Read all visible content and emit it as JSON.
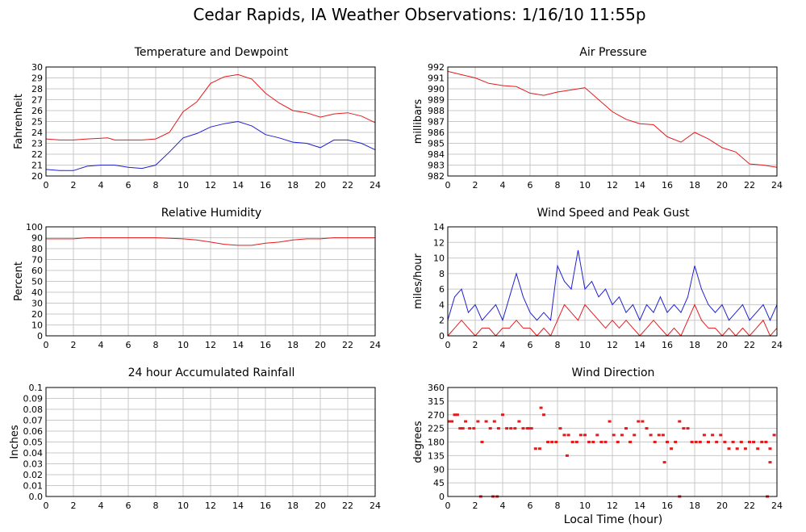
{
  "page_title": "Cedar Rapids, IA Weather Observations: 1/16/10 11:55p",
  "xlabel": "Local Time (hour)",
  "colors": {
    "red": "#e41a1c",
    "blue": "#2020d0",
    "grid": "#c8c8c8",
    "frame": "#000000"
  },
  "chart_data": [
    {
      "type": "line",
      "title": "Temperature and Dewpoint",
      "ylabel": "Fahrenheit",
      "xlim": [
        0,
        24
      ],
      "ylim": [
        20,
        30
      ],
      "xticks": [
        0,
        2,
        4,
        6,
        8,
        10,
        12,
        14,
        16,
        18,
        20,
        22,
        24
      ],
      "yticks": [
        "20",
        "21",
        "22",
        "23",
        "24",
        "25",
        "26",
        "27",
        "28",
        "29",
        "30"
      ],
      "series": [
        {
          "color": "#e41a1c",
          "x": [
            0,
            1,
            2,
            3,
            4.5,
            5,
            6,
            7,
            8,
            9,
            10,
            11,
            12,
            13,
            14,
            15,
            16,
            17,
            18,
            19,
            20,
            21,
            22,
            23,
            24
          ],
          "values": [
            23.4,
            23.3,
            23.3,
            23.4,
            23.5,
            23.3,
            23.3,
            23.3,
            23.4,
            24.0,
            25.9,
            26.8,
            28.5,
            29.1,
            29.3,
            28.9,
            27.6,
            26.7,
            26.0,
            25.8,
            25.4,
            25.7,
            25.8,
            25.5,
            24.9
          ]
        },
        {
          "color": "#2020d0",
          "x": [
            0,
            1,
            2,
            3,
            4,
            5,
            6,
            7,
            8,
            9,
            10,
            11,
            12,
            13,
            14,
            15,
            16,
            17,
            18,
            19,
            20,
            21,
            22,
            23,
            24
          ],
          "values": [
            20.6,
            20.5,
            20.5,
            20.9,
            21.0,
            21.0,
            20.8,
            20.7,
            21.0,
            22.2,
            23.5,
            23.9,
            24.5,
            24.8,
            25.0,
            24.6,
            23.8,
            23.5,
            23.1,
            23.0,
            22.6,
            23.3,
            23.3,
            23.0,
            22.4
          ]
        }
      ]
    },
    {
      "type": "line",
      "title": "Air Pressure",
      "ylabel": "millibars",
      "xlim": [
        0,
        24
      ],
      "ylim": [
        982,
        992
      ],
      "xticks": [
        0,
        2,
        4,
        6,
        8,
        10,
        12,
        14,
        16,
        18,
        20,
        22,
        24
      ],
      "yticks": [
        "982",
        "983",
        "984",
        "985",
        "986",
        "987",
        "988",
        "989",
        "990",
        "991",
        "992"
      ],
      "series": [
        {
          "color": "#e41a1c",
          "x": [
            0,
            1,
            2,
            3,
            4,
            5,
            6,
            7,
            8,
            9,
            10,
            11,
            12,
            13,
            14,
            15,
            16,
            17,
            18,
            19,
            20,
            21,
            22,
            23,
            24
          ],
          "values": [
            991.6,
            991.3,
            991.0,
            990.5,
            990.3,
            990.2,
            989.6,
            989.4,
            989.7,
            989.9,
            990.1,
            989.0,
            987.9,
            987.2,
            986.8,
            986.7,
            985.6,
            985.1,
            986.0,
            985.4,
            984.6,
            984.2,
            983.1,
            983.0,
            982.8
          ]
        }
      ]
    },
    {
      "type": "line",
      "title": "Relative Humidity",
      "ylabel": "Percent",
      "xlim": [
        0,
        24
      ],
      "ylim": [
        0,
        100
      ],
      "xticks": [
        0,
        2,
        4,
        6,
        8,
        10,
        12,
        14,
        16,
        18,
        20,
        22,
        24
      ],
      "yticks": [
        "0",
        "10",
        "20",
        "30",
        "40",
        "50",
        "60",
        "70",
        "80",
        "90",
        "100"
      ],
      "series": [
        {
          "color": "#e41a1c",
          "x": [
            0,
            2,
            3,
            4,
            6,
            8,
            10,
            11,
            12,
            13,
            14,
            15,
            16,
            17,
            18,
            19,
            20,
            21,
            22,
            24
          ],
          "values": [
            89,
            89,
            90,
            90,
            90,
            90,
            89,
            88,
            86,
            84,
            83,
            83,
            85,
            86,
            88,
            89,
            89,
            90,
            90,
            90
          ]
        }
      ]
    },
    {
      "type": "line",
      "title": "Wind Speed and Peak Gust",
      "ylabel": "miles/hour",
      "xlim": [
        0,
        24
      ],
      "ylim": [
        0,
        14
      ],
      "xticks": [
        0,
        2,
        4,
        6,
        8,
        10,
        12,
        14,
        16,
        18,
        20,
        22,
        24
      ],
      "yticks": [
        "0",
        "2",
        "4",
        "6",
        "8",
        "10",
        "12",
        "14"
      ],
      "series": [
        {
          "color": "#2020d0",
          "x": [
            0,
            0.5,
            1,
            1.5,
            2,
            2.5,
            3,
            3.5,
            4,
            4.5,
            5,
            5.5,
            6,
            6.5,
            7,
            7.5,
            8,
            8.5,
            9,
            9.5,
            10,
            10.5,
            11,
            11.5,
            12,
            12.5,
            13,
            13.5,
            14,
            14.5,
            15,
            15.5,
            16,
            16.5,
            17,
            17.5,
            18,
            18.5,
            19,
            19.5,
            20,
            20.5,
            21,
            21.5,
            22,
            22.5,
            23,
            23.5,
            24
          ],
          "values": [
            2,
            5,
            6,
            3,
            4,
            2,
            3,
            4,
            2,
            5,
            8,
            5,
            3,
            2,
            3,
            2,
            9,
            7,
            6,
            11,
            6,
            7,
            5,
            6,
            4,
            5,
            3,
            4,
            2,
            4,
            3,
            5,
            3,
            4,
            3,
            5,
            9,
            6,
            4,
            3,
            4,
            2,
            3,
            4,
            2,
            3,
            4,
            2,
            4
          ]
        },
        {
          "color": "#e41a1c",
          "x": [
            0,
            0.5,
            1,
            1.5,
            2,
            2.5,
            3,
            3.5,
            4,
            4.5,
            5,
            5.5,
            6,
            6.5,
            7,
            7.5,
            8,
            8.5,
            9,
            9.5,
            10,
            10.5,
            11,
            11.5,
            12,
            12.5,
            13,
            13.5,
            14,
            14.5,
            15,
            15.5,
            16,
            16.5,
            17,
            17.5,
            18,
            18.5,
            19,
            19.5,
            20,
            20.5,
            21,
            21.5,
            22,
            22.5,
            23,
            23.5,
            24
          ],
          "values": [
            0,
            1,
            2,
            1,
            0,
            1,
            1,
            0,
            1,
            1,
            2,
            1,
            1,
            0,
            1,
            0,
            2,
            4,
            3,
            2,
            4,
            3,
            2,
            1,
            2,
            1,
            2,
            1,
            0,
            1,
            2,
            1,
            0,
            1,
            0,
            2,
            4,
            2,
            1,
            1,
            0,
            1,
            0,
            1,
            0,
            1,
            2,
            0,
            1
          ]
        }
      ]
    },
    {
      "type": "line",
      "title": "24 hour Accumulated Rainfall",
      "ylabel": "Inches",
      "xlim": [
        0,
        24
      ],
      "ylim": [
        0,
        0.1
      ],
      "xticks": [
        0,
        2,
        4,
        6,
        8,
        10,
        12,
        14,
        16,
        18,
        20,
        22,
        24
      ],
      "yticks": [
        "0.0",
        "0.01",
        "0.02",
        "0.03",
        "0.04",
        "0.05",
        "0.06",
        "0.07",
        "0.08",
        "0.09",
        "0.1"
      ],
      "series": [
        {
          "color": "#e41a1c",
          "x": [
            0,
            24
          ],
          "values": [
            0,
            0
          ]
        }
      ]
    },
    {
      "type": "scatter",
      "title": "Wind Direction",
      "ylabel": "degrees",
      "xlim": [
        0,
        24
      ],
      "ylim": [
        0,
        360
      ],
      "xticks": [
        0,
        2,
        4,
        6,
        8,
        10,
        12,
        14,
        16,
        18,
        20,
        22,
        24
      ],
      "yticks": [
        "0",
        "45",
        "90",
        "135",
        "180",
        "225",
        "270",
        "315",
        "360"
      ],
      "series": [
        {
          "color": "#e41a1c",
          "x": [
            0.1,
            0.3,
            0.5,
            0.7,
            0.9,
            1.1,
            1.3,
            1.6,
            1.9,
            2.2,
            2.5,
            2.8,
            3.1,
            3.4,
            3.7,
            4.0,
            4.3,
            4.6,
            4.9,
            5.2,
            5.5,
            5.8,
            6.1,
            6.4,
            6.7,
            7.0,
            7.3,
            7.6,
            7.9,
            8.2,
            8.5,
            8.8,
            9.1,
            9.4,
            9.7,
            10.0,
            10.3,
            10.6,
            10.9,
            11.2,
            11.5,
            11.8,
            12.1,
            12.4,
            12.7,
            13.0,
            13.3,
            13.6,
            13.9,
            14.2,
            14.5,
            14.8,
            15.1,
            15.4,
            15.7,
            16.0,
            16.3,
            16.6,
            16.9,
            17.2,
            17.5,
            17.8,
            18.1,
            18.4,
            18.7,
            19.0,
            19.3,
            19.6,
            19.9,
            20.2,
            20.5,
            20.8,
            21.1,
            21.4,
            21.7,
            22.0,
            22.3,
            22.6,
            22.9,
            23.2,
            23.5,
            23.8,
            2.4,
            3.3,
            3.6,
            5.9,
            6.8,
            8.7,
            15.8,
            16.9,
            23.3,
            23.5
          ],
          "values": [
            248,
            248,
            270,
            270,
            225,
            225,
            248,
            225,
            225,
            248,
            180,
            248,
            225,
            248,
            225,
            270,
            225,
            225,
            225,
            248,
            225,
            225,
            225,
            158,
            158,
            270,
            180,
            180,
            180,
            225,
            203,
            203,
            180,
            180,
            203,
            203,
            180,
            180,
            203,
            180,
            180,
            248,
            203,
            180,
            203,
            225,
            180,
            203,
            248,
            248,
            225,
            203,
            180,
            203,
            203,
            180,
            158,
            180,
            248,
            225,
            225,
            180,
            180,
            180,
            203,
            180,
            203,
            180,
            203,
            180,
            158,
            180,
            158,
            180,
            158,
            180,
            180,
            158,
            180,
            180,
            158,
            203,
            0,
            0,
            0,
            225,
            293,
            135,
            113,
            0,
            0,
            113
          ]
        }
      ]
    }
  ]
}
